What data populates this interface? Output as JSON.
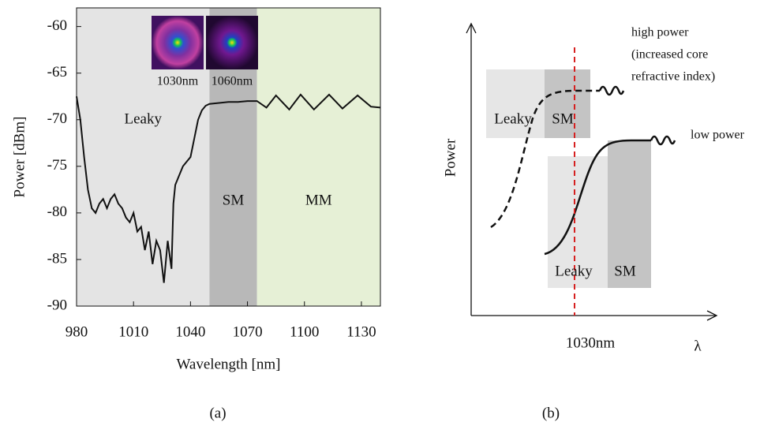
{
  "chart_data": [
    {
      "type": "line",
      "panel_label": "(a)",
      "xlabel": "Wavelength [nm]",
      "ylabel": "Power [dBm]",
      "xlim": [
        980,
        1140
      ],
      "ylim": [
        -90,
        -58
      ],
      "xticks": [
        980,
        1010,
        1040,
        1070,
        1100,
        1130
      ],
      "yticks": [
        -90,
        -85,
        -80,
        -75,
        -70,
        -65,
        -60
      ],
      "regions": [
        {
          "label": "Leaky",
          "range": [
            980,
            1050
          ],
          "color": "#e4e4e4"
        },
        {
          "label": "SM",
          "range": [
            1050,
            1075
          ],
          "color": "#b8b8b8"
        },
        {
          "label": "MM",
          "range": [
            1075,
            1140
          ],
          "color": "#e6f0d6"
        }
      ],
      "insets": [
        "1030nm",
        "1060nm"
      ],
      "series": [
        {
          "color": "#111111",
          "x": [
            980,
            982,
            984,
            986,
            988,
            990,
            992,
            994,
            996,
            998,
            1000,
            1002,
            1004,
            1006,
            1008,
            1010,
            1012,
            1014,
            1016,
            1018,
            1020,
            1022,
            1024,
            1026,
            1028,
            1030,
            1031,
            1032,
            1034,
            1036,
            1038,
            1040,
            1042,
            1044,
            1046,
            1048,
            1050,
            1055,
            1060,
            1065,
            1070,
            1075,
            1080,
            1085,
            1092,
            1098,
            1105,
            1113,
            1120,
            1128,
            1135,
            1140
          ],
          "values": [
            -67.5,
            -70,
            -74,
            -77.5,
            -79.5,
            -80,
            -79,
            -78.5,
            -79.5,
            -78.5,
            -78,
            -79,
            -79.5,
            -80.5,
            -81,
            -80,
            -82,
            -81.5,
            -84,
            -82,
            -85.5,
            -83,
            -84,
            -87.5,
            -83,
            -86,
            -79,
            -77,
            -76,
            -75,
            -74.5,
            -74,
            -72,
            -70,
            -69,
            -68.5,
            -68.3,
            -68.2,
            -68.1,
            -68.1,
            -68,
            -68,
            -68.7,
            -67.4,
            -68.9,
            -67.3,
            -68.9,
            -67.3,
            -68.8,
            -67.4,
            -68.6,
            -68.7
          ]
        }
      ]
    },
    {
      "type": "schematic",
      "panel_label": "(b)",
      "xlabel": "λ",
      "ylabel": "Power",
      "marker_label": "1030nm",
      "high_label": [
        "high power",
        "(increased core",
        "refractive index)"
      ],
      "low_label": "low power",
      "upper_regions": [
        "Leaky",
        "SM"
      ],
      "lower_regions": [
        "Leaky",
        "SM"
      ]
    }
  ]
}
